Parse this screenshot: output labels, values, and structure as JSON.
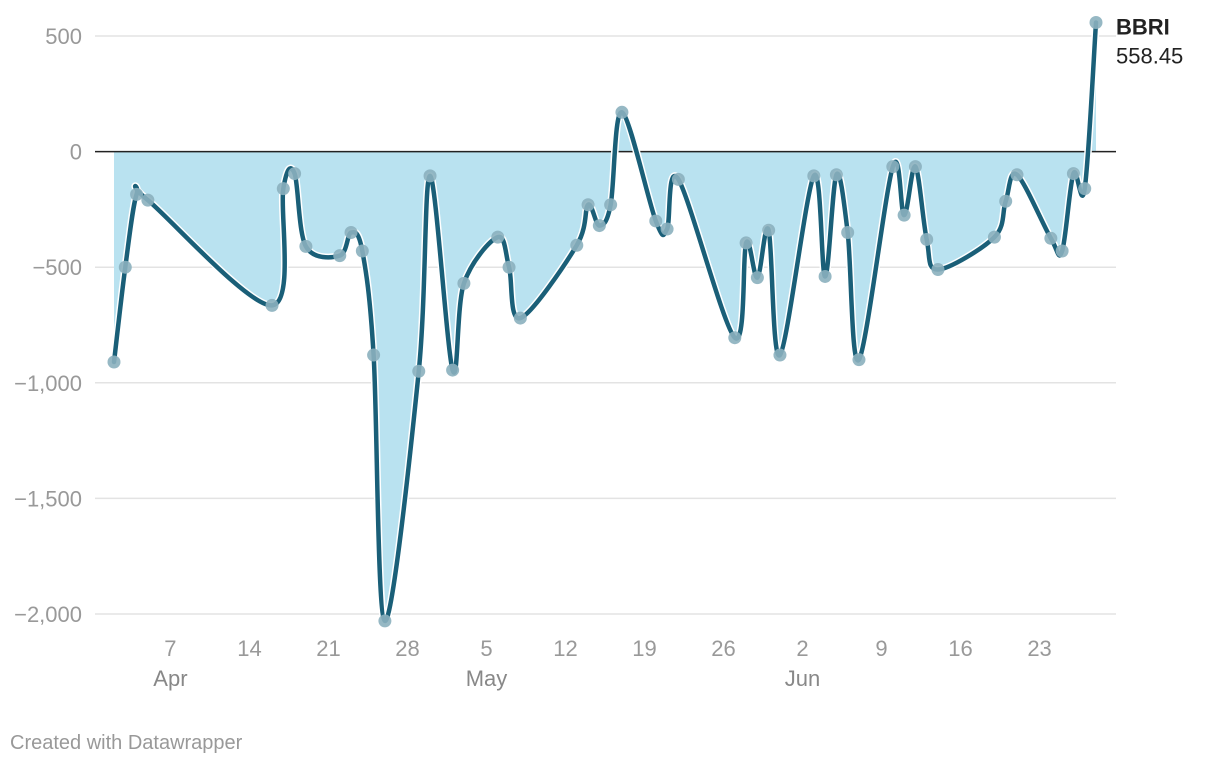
{
  "footer": "Created with Datawrapper",
  "colors": {
    "line": "#1a5f78",
    "fill": "#b9e2f0",
    "dot": "#8bb0be",
    "grid": "#e3e3e3",
    "zero": "#222222"
  },
  "chart_data": {
    "type": "area",
    "title": "",
    "xlabel": "",
    "ylabel": "",
    "ylim": [
      -2150,
      580
    ],
    "xlim": [
      "2024-04-02",
      "2024-06-29"
    ],
    "grid": true,
    "legend": "none",
    "y_ticks": [
      {
        "value": 500,
        "label": "500"
      },
      {
        "value": 0,
        "label": "0"
      },
      {
        "value": -500,
        "label": "−500"
      },
      {
        "value": -1000,
        "label": "−1,000"
      },
      {
        "value": -1500,
        "label": "−1,500"
      },
      {
        "value": -2000,
        "label": "−2,000"
      }
    ],
    "x_ticks": [
      {
        "date": "2024-04-07",
        "label": "7",
        "month": "Apr"
      },
      {
        "date": "2024-04-14",
        "label": "14",
        "month": ""
      },
      {
        "date": "2024-04-21",
        "label": "21",
        "month": ""
      },
      {
        "date": "2024-04-28",
        "label": "28",
        "month": ""
      },
      {
        "date": "2024-05-05",
        "label": "5",
        "month": "May"
      },
      {
        "date": "2024-05-12",
        "label": "12",
        "month": ""
      },
      {
        "date": "2024-05-19",
        "label": "19",
        "month": ""
      },
      {
        "date": "2024-05-26",
        "label": "26",
        "month": ""
      },
      {
        "date": "2024-06-02",
        "label": "2",
        "month": "Jun"
      },
      {
        "date": "2024-06-09",
        "label": "9",
        "month": ""
      },
      {
        "date": "2024-06-16",
        "label": "16",
        "month": ""
      },
      {
        "date": "2024-06-23",
        "label": "23",
        "month": ""
      }
    ],
    "series": [
      {
        "name": "BBRI",
        "last_value_label": "558.45",
        "points": [
          {
            "date": "2024-04-02",
            "value": -910
          },
          {
            "date": "2024-04-03",
            "value": -500
          },
          {
            "date": "2024-04-04",
            "value": -185
          },
          {
            "date": "2024-04-05",
            "value": -210
          },
          {
            "date": "2024-04-16",
            "value": -665
          },
          {
            "date": "2024-04-17",
            "value": -160
          },
          {
            "date": "2024-04-18",
            "value": -95
          },
          {
            "date": "2024-04-19",
            "value": -410
          },
          {
            "date": "2024-04-22",
            "value": -450
          },
          {
            "date": "2024-04-23",
            "value": -350
          },
          {
            "date": "2024-04-24",
            "value": -430
          },
          {
            "date": "2024-04-25",
            "value": -880
          },
          {
            "date": "2024-04-26",
            "value": -2030
          },
          {
            "date": "2024-04-29",
            "value": -950
          },
          {
            "date": "2024-04-30",
            "value": -105
          },
          {
            "date": "2024-05-02",
            "value": -945
          },
          {
            "date": "2024-05-03",
            "value": -570
          },
          {
            "date": "2024-05-06",
            "value": -370
          },
          {
            "date": "2024-05-07",
            "value": -500
          },
          {
            "date": "2024-05-08",
            "value": -720
          },
          {
            "date": "2024-05-13",
            "value": -405
          },
          {
            "date": "2024-05-14",
            "value": -230
          },
          {
            "date": "2024-05-15",
            "value": -320
          },
          {
            "date": "2024-05-16",
            "value": -230
          },
          {
            "date": "2024-05-17",
            "value": 170
          },
          {
            "date": "2024-05-20",
            "value": -300
          },
          {
            "date": "2024-05-21",
            "value": -335
          },
          {
            "date": "2024-05-22",
            "value": -120
          },
          {
            "date": "2024-05-27",
            "value": -805
          },
          {
            "date": "2024-05-28",
            "value": -395
          },
          {
            "date": "2024-05-29",
            "value": -545
          },
          {
            "date": "2024-05-30",
            "value": -340
          },
          {
            "date": "2024-05-31",
            "value": -880
          },
          {
            "date": "2024-06-03",
            "value": -105
          },
          {
            "date": "2024-06-04",
            "value": -540
          },
          {
            "date": "2024-06-05",
            "value": -100
          },
          {
            "date": "2024-06-06",
            "value": -350
          },
          {
            "date": "2024-06-07",
            "value": -900
          },
          {
            "date": "2024-06-10",
            "value": -65
          },
          {
            "date": "2024-06-11",
            "value": -275
          },
          {
            "date": "2024-06-12",
            "value": -65
          },
          {
            "date": "2024-06-13",
            "value": -380
          },
          {
            "date": "2024-06-14",
            "value": -510
          },
          {
            "date": "2024-06-19",
            "value": -370
          },
          {
            "date": "2024-06-20",
            "value": -215
          },
          {
            "date": "2024-06-21",
            "value": -100
          },
          {
            "date": "2024-06-24",
            "value": -375
          },
          {
            "date": "2024-06-25",
            "value": -430
          },
          {
            "date": "2024-06-26",
            "value": -95
          },
          {
            "date": "2024-06-27",
            "value": -160
          },
          {
            "date": "2024-06-28",
            "value": 558.45
          }
        ]
      }
    ]
  }
}
